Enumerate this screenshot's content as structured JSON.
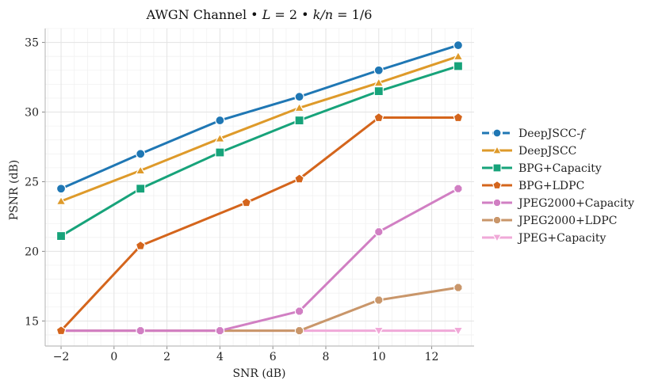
{
  "chart_data": {
    "type": "line",
    "title": "AWGN Channel • L = 2 • k/n = 1/6",
    "title_parts": {
      "prefix": "AWGN Channel • ",
      "L_var": "L",
      "L_eq": " = 2 • ",
      "kn_var": "k/n",
      "kn_eq": " = 1/6"
    },
    "xlabel": "SNR (dB)",
    "ylabel": "PSNR (dB)",
    "xlim": [
      -2.6,
      13.6
    ],
    "ylim": [
      13.2,
      36.0
    ],
    "xticks": [
      -2,
      0,
      2,
      4,
      6,
      8,
      10,
      12
    ],
    "xtick_labels": [
      "−2",
      "0",
      "2",
      "4",
      "6",
      "8",
      "10",
      "12"
    ],
    "yticks": [
      15,
      20,
      25,
      30,
      35
    ],
    "ytick_labels": [
      "15",
      "20",
      "25",
      "30",
      "35"
    ],
    "grid": true,
    "legend_position": "right",
    "series": [
      {
        "name": "DeepJSCC-f",
        "label_main": "DeepJSCC-",
        "label_italic": "f",
        "color": "#1f77b4",
        "marker": "circle",
        "dashed": true,
        "x": [
          -2,
          1,
          4,
          7,
          10,
          13
        ],
        "y": [
          24.5,
          27.0,
          29.4,
          31.1,
          33.0,
          34.8
        ]
      },
      {
        "name": "DeepJSCC",
        "color": "#de9a2a",
        "marker": "triangle-up",
        "x": [
          -2,
          1,
          4,
          7,
          10,
          13
        ],
        "y": [
          23.6,
          25.8,
          28.1,
          30.3,
          32.1,
          34.0
        ]
      },
      {
        "name": "BPG+Capacity",
        "color": "#17a37a",
        "marker": "square",
        "x": [
          -2,
          1,
          4,
          7,
          10,
          13
        ],
        "y": [
          21.1,
          24.5,
          27.1,
          29.4,
          31.5,
          33.3
        ]
      },
      {
        "name": "BPG+LDPC",
        "color": "#d4651c",
        "marker": "pentagon",
        "x": [
          -2,
          1,
          5,
          7,
          10,
          13
        ],
        "y": [
          14.3,
          20.4,
          23.5,
          25.2,
          29.6,
          29.6
        ]
      },
      {
        "name": "JPEG2000+Capacity",
        "color": "#d17fc3",
        "marker": "octagon",
        "x": [
          -2,
          1,
          4,
          7,
          10,
          13
        ],
        "y": [
          14.3,
          14.3,
          14.3,
          15.7,
          21.4,
          24.5
        ]
      },
      {
        "name": "JPEG2000+LDPC",
        "color": "#c9966a",
        "marker": "octagon",
        "x": [
          -2,
          1,
          4,
          7,
          10,
          13
        ],
        "y": [
          14.3,
          14.3,
          14.3,
          14.3,
          16.5,
          17.4
        ]
      },
      {
        "name": "JPEG+Capacity",
        "color": "#f0a9d8",
        "marker": "triangle-down",
        "x": [
          -2,
          1,
          4,
          7,
          10,
          13
        ],
        "y": [
          14.3,
          14.3,
          14.3,
          14.3,
          14.3,
          14.3
        ]
      }
    ]
  }
}
